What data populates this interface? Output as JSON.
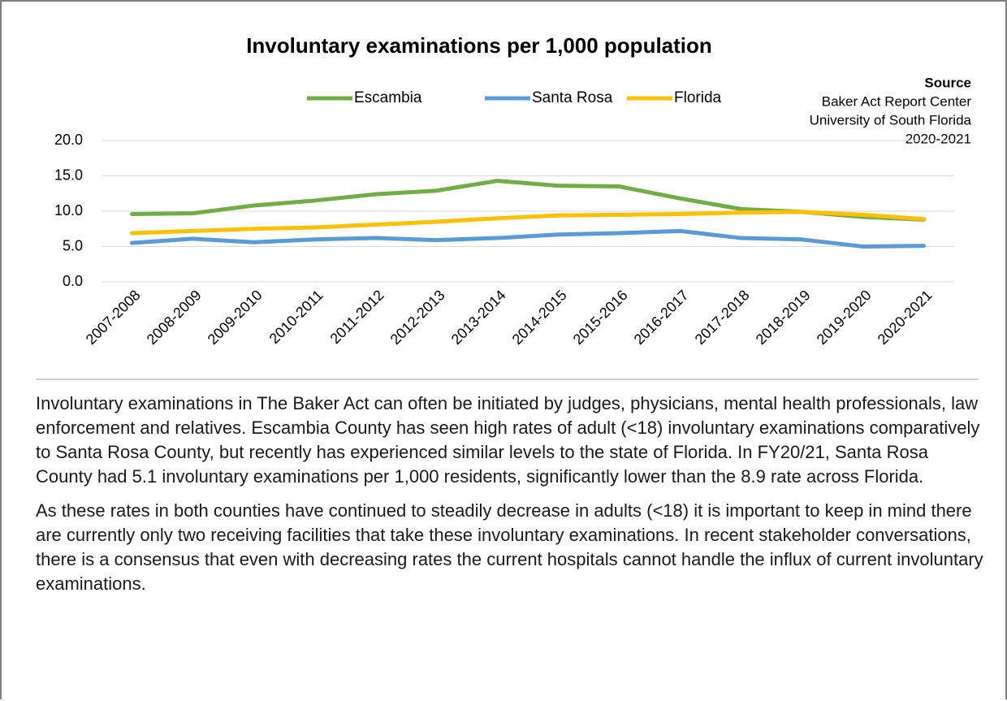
{
  "chart_data": {
    "type": "line",
    "title": "Involuntary examinations per 1,000 population",
    "source_title": "Source",
    "source_lines": [
      "Baker Act Report Center",
      "University of South Florida",
      "2020-2021"
    ],
    "categories": [
      "2007-2008",
      "2008-2009",
      "2009-2010",
      "2010-2011",
      "2011-2012",
      "2012-2013",
      "2013-2014",
      "2014-2015",
      "2015-2016",
      "2016-2017",
      "2017-2018",
      "2018-2019",
      "2019-2020",
      "2020-2021"
    ],
    "series": [
      {
        "name": "Escambia",
        "color": "#70ad47",
        "values": [
          9.6,
          9.7,
          10.8,
          11.5,
          12.4,
          12.9,
          14.3,
          13.6,
          13.5,
          11.8,
          10.3,
          9.9,
          9.2,
          8.8
        ]
      },
      {
        "name": "Santa Rosa",
        "color": "#5b9bd5",
        "values": [
          5.5,
          6.1,
          5.6,
          6.0,
          6.2,
          5.9,
          6.2,
          6.7,
          6.9,
          7.2,
          6.2,
          6.0,
          5.0,
          5.1
        ]
      },
      {
        "name": "Florida",
        "color": "#ffc000",
        "values": [
          6.9,
          7.2,
          7.5,
          7.7,
          8.1,
          8.5,
          9.0,
          9.4,
          9.5,
          9.6,
          9.8,
          9.9,
          9.5,
          8.9
        ]
      }
    ],
    "ylim": [
      0,
      20
    ],
    "yticks": [
      {
        "value": 0,
        "label": "0.0"
      },
      {
        "value": 5,
        "label": "5.0"
      },
      {
        "value": 10,
        "label": "10.0"
      },
      {
        "value": 15,
        "label": "15.0"
      },
      {
        "value": 20,
        "label": "20.0"
      }
    ],
    "grid": true,
    "legend": "top"
  },
  "paragraphs": [
    "Involuntary examinations in The Baker Act can often be initiated by judges, physicians, mental health professionals, law enforcement and relatives. Escambia County has seen high rates of adult (<18) involuntary examinations comparatively to Santa Rosa County, but recently has experienced similar levels to the state of Florida. In FY20/21, Santa Rosa County had 5.1 involuntary examinations per 1,000 residents, significantly lower than the 8.9 rate across Florida.",
    "As these rates in both counties have continued to steadily decrease in adults (<18) it is important to keep in mind there are currently only two receiving facilities that take these involuntary examinations. In recent stakeholder conversations, there is a consensus that even with decreasing rates the current hospitals cannot handle the influx of current involuntary examinations."
  ]
}
